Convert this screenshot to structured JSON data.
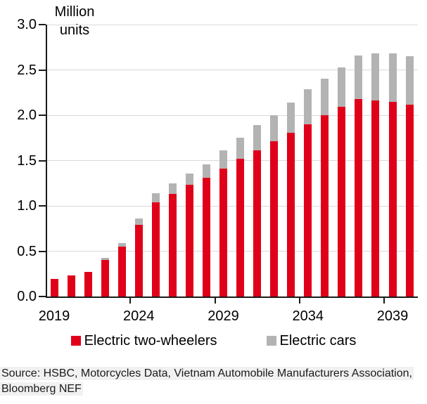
{
  "chart_title": {
    "line1": "Million",
    "line2": "units"
  },
  "legend": [
    {
      "name": "electric-two-wheelers",
      "label": "Electric two-wheelers",
      "color": "#e00019"
    },
    {
      "name": "electric-cars",
      "label": "Electric cars",
      "color": "#b3b3b3"
    }
  ],
  "source": {
    "line1": "Source: HSBC, Motorcycles Data, Vietnam Automobile Manufacturers Association,",
    "line2": "Bloomberg NEF"
  },
  "colors": {
    "two_wheelers": "#e00019",
    "cars": "#b3b3b3",
    "gridline": "#d9d9d9",
    "axis": "#1a1a1a"
  },
  "chart_data": {
    "type": "bar",
    "stacked": true,
    "title": "Million units",
    "ylabel": "Million units",
    "ylim": [
      0,
      3.0
    ],
    "ytick_step": 0.5,
    "ytick_labels": [
      "0.0",
      "0.5",
      "1.0",
      "1.5",
      "2.0",
      "2.5",
      "3.0"
    ],
    "grid": true,
    "legend_position": "bottom",
    "categories": [
      2019,
      2020,
      2021,
      2022,
      2023,
      2024,
      2025,
      2026,
      2027,
      2028,
      2029,
      2030,
      2031,
      2032,
      2033,
      2034,
      2035,
      2036,
      2037,
      2038,
      2039,
      2040
    ],
    "xtick_labels": [
      "2019",
      "2024",
      "2029",
      "2034",
      "2039"
    ],
    "xtick_label_indices": [
      0,
      5,
      10,
      15,
      20
    ],
    "xtick_boundary_indices": [
      5,
      10,
      15,
      20
    ],
    "series": [
      {
        "name": "Electric two-wheelers",
        "color": "#e00019",
        "values": [
          0.19,
          0.23,
          0.27,
          0.4,
          0.55,
          0.79,
          1.04,
          1.13,
          1.23,
          1.31,
          1.41,
          1.52,
          1.61,
          1.71,
          1.81,
          1.9,
          2.0,
          2.09,
          2.18,
          2.16,
          2.15,
          2.12
        ]
      },
      {
        "name": "Electric cars",
        "color": "#b3b3b3",
        "values": [
          0.0,
          0.0,
          0.0,
          0.03,
          0.04,
          0.07,
          0.1,
          0.12,
          0.13,
          0.15,
          0.2,
          0.23,
          0.28,
          0.29,
          0.33,
          0.39,
          0.4,
          0.44,
          0.48,
          0.52,
          0.53,
          0.53
        ]
      }
    ]
  }
}
